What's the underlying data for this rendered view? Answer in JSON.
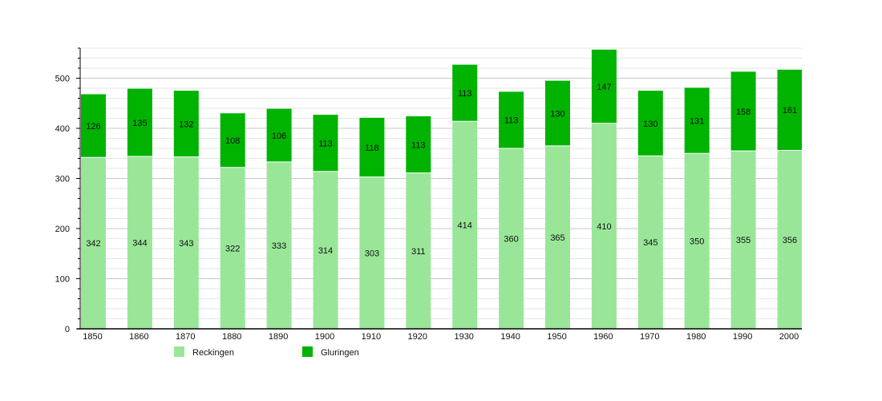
{
  "chart_data": {
    "type": "bar",
    "stacked": true,
    "title": "",
    "xlabel": "",
    "ylabel": "",
    "ylim": [
      0,
      560
    ],
    "yticks": [
      0,
      100,
      200,
      300,
      400,
      500
    ],
    "grid": true,
    "legend_position": "bottom",
    "categories": [
      "1850",
      "1860",
      "1870",
      "1880",
      "1890",
      "1900",
      "1910",
      "1920",
      "1930",
      "1940",
      "1950",
      "1960",
      "1970",
      "1980",
      "1990",
      "2000"
    ],
    "series": [
      {
        "name": "Reckingen",
        "color": "#99e699",
        "values": [
          342,
          344,
          343,
          322,
          333,
          314,
          303,
          311,
          414,
          360,
          365,
          410,
          345,
          350,
          355,
          356
        ]
      },
      {
        "name": "Gluringen",
        "color": "#00b300",
        "values": [
          126,
          135,
          132,
          108,
          106,
          113,
          118,
          113,
          113,
          113,
          130,
          147,
          130,
          131,
          158,
          161
        ]
      }
    ]
  }
}
